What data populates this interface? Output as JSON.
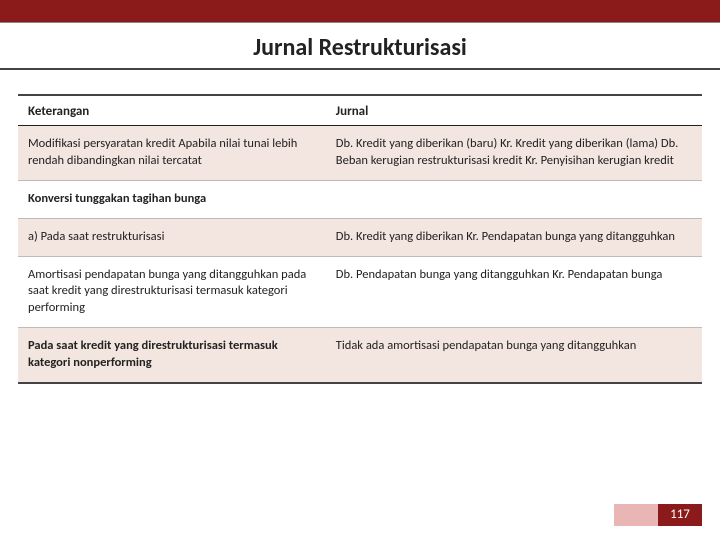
{
  "title": "Jurnal Restrukturisasi",
  "header": {
    "col1": "Keterangan",
    "col2": "Jurnal"
  },
  "rows": [
    {
      "left": "Modifikasi persyaratan kredit\nApabila nilai tunai lebih rendah\ndibandingkan nilai tercatat",
      "right": "Db. Kredit yang diberikan (baru)\nKr. Kredit yang diberikan (lama)\nDb. Beban kerugian restrukturisasi kredit\nKr. Penyisihan kerugian kredit"
    },
    {
      "left": "Konversi tunggakan tagihan bunga",
      "right": ""
    },
    {
      "left": "a) Pada saat restrukturisasi",
      "right": "Db. Kredit yang diberikan\nKr. Pendapatan bunga yang ditangguhkan"
    },
    {
      "left": "Amortisasi pendapatan bunga yang\nditangguhkan pada saat\nkredit yang direstrukturisasi termasuk kategori performing",
      "right": "Db. Pendapatan bunga yang ditangguhkan\nKr. Pendapatan bunga"
    },
    {
      "left": "Pada saat kredit yang direstrukturisasi termasuk kategori nonperforming",
      "right": "Tidak ada amortisasi pendapatan bunga yang ditangguhkan"
    }
  ],
  "page_number": "117"
}
